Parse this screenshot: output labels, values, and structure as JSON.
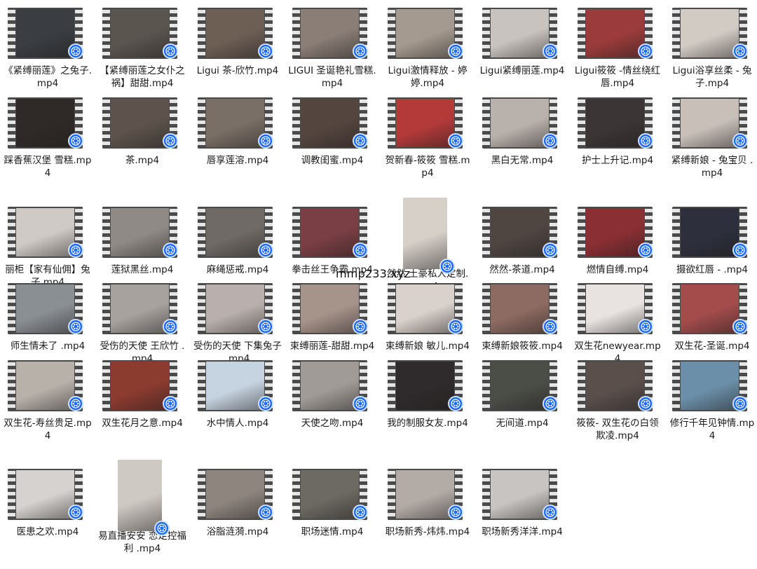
{
  "files": [
    {
      "name": "《紧缚丽莲》之兔子.mp4",
      "thumb": "#3a3d42"
    },
    {
      "name": "【紧缚丽莲之女仆之祸】甜甜.mp4",
      "thumb": "#5b5550"
    },
    {
      "name": "Ligui 茶-欣竹.mp4",
      "thumb": "#6e5f55"
    },
    {
      "name": "LIGUI 圣诞艳礼雪糕.mp4",
      "thumb": "#8a7e76"
    },
    {
      "name": "Ligui激情释放 - 婷婷.mp4",
      "thumb": "#a59a8f"
    },
    {
      "name": "Ligui紧缚丽莲.mp4",
      "thumb": "#c9c3bf"
    },
    {
      "name": "Ligui筱筱 -情丝绕红唇.mp4",
      "thumb": "#9c3b3b"
    },
    {
      "name": "Ligui浴享丝柔 - 兔子.mp4",
      "thumb": "#d2cbc4"
    },
    {
      "name": "踩香蕉汉堡 雪糕.mp4",
      "thumb": "#2f2a28"
    },
    {
      "name": "茶.mp4",
      "thumb": "#5d534c"
    },
    {
      "name": "唇享莲溶.mp4",
      "thumb": "#7a6f66"
    },
    {
      "name": "调教闺蜜.mp4",
      "thumb": "#55453f"
    },
    {
      "name": "贺新春-筱筱 雪糕.mp4",
      "thumb": "#b43a3a"
    },
    {
      "name": "黑白无常.mp4",
      "thumb": "#b9b2ac"
    },
    {
      "name": "护士上升记.mp4",
      "thumb": "#3b3635"
    },
    {
      "name": "紧缚新娘 - 兔宝贝 .mp4",
      "thumb": "#c7bfb8"
    },
    {
      "name": "丽柜【家有仙佣】兔子.mp4",
      "thumb": "#cfcac6"
    },
    {
      "name": "莲狱黑丝.mp4",
      "thumb": "#8f8a86"
    },
    {
      "name": "麻绳惩戒.mp4",
      "thumb": "#6f6a66"
    },
    {
      "name": "拳击丝王争霸.mp4",
      "thumb": "#7a3f44"
    },
    {
      "name": "然然 土豪私人定制.mp4",
      "thumb": "#d7d0c9",
      "portrait": true
    },
    {
      "name": "然然-茶道.mp4",
      "thumb": "#4f4541"
    },
    {
      "name": "燃情自缚.mp4",
      "thumb": "#8a2f33"
    },
    {
      "name": "摄欲红唇 - .mp4",
      "thumb": "#2d2f3d"
    },
    {
      "name": "师生情未了 .mp4",
      "thumb": "#8a8f94"
    },
    {
      "name": "受伤的天使 王欣竹 .mp4",
      "thumb": "#a7a29e"
    },
    {
      "name": "受伤的天使 下集兔子 .mp4",
      "thumb": "#b9b0ad"
    },
    {
      "name": "束缚丽莲-甜甜.mp4",
      "thumb": "#a6938a"
    },
    {
      "name": "束缚新娘 敏儿.mp4",
      "thumb": "#d9d1cb"
    },
    {
      "name": "束缚新娘筱筱.mp4",
      "thumb": "#8d6b62"
    },
    {
      "name": "双生花newyear.mp4",
      "thumb": "#e8e3e1"
    },
    {
      "name": "双生花-圣诞.mp4",
      "thumb": "#a44c4c"
    },
    {
      "name": "双生花-寿丝贵足.mp4",
      "thumb": "#b8b1aa"
    },
    {
      "name": "双生花月之意.mp4",
      "thumb": "#8c3b2f"
    },
    {
      "name": "水中情人.mp4",
      "thumb": "#c6d3e0"
    },
    {
      "name": "天使之吻.mp4",
      "thumb": "#a09b96"
    },
    {
      "name": "我的制服女友.mp4",
      "thumb": "#2f2b2c"
    },
    {
      "name": "无间道.mp4",
      "thumb": "#4b4d47"
    },
    {
      "name": "筱筱- 双生花の白领欺凌.mp4",
      "thumb": "#5a4f4b"
    },
    {
      "name": "修行千年见钟情.mp4",
      "thumb": "#6b8fa8"
    },
    {
      "name": "医患之欢.mp4",
      "thumb": "#d5d2cf"
    },
    {
      "name": "易直播安安 恋足控福利 .mp4",
      "thumb": "#cfc9c3",
      "portrait": true
    },
    {
      "name": "浴脂涟漪.mp4",
      "thumb": "#8e857e"
    },
    {
      "name": "职场迷情.mp4",
      "thumb": "#6d6a63"
    },
    {
      "name": "职场新秀-炜炜.mp4",
      "thumb": "#b3aca6"
    },
    {
      "name": "职场新秀洋洋.mp4",
      "thumb": "#c8c4c1"
    }
  ],
  "watermark": "mmp233.xyz",
  "badge_color": "#1565ff",
  "badge_icon": "media-player-icon"
}
